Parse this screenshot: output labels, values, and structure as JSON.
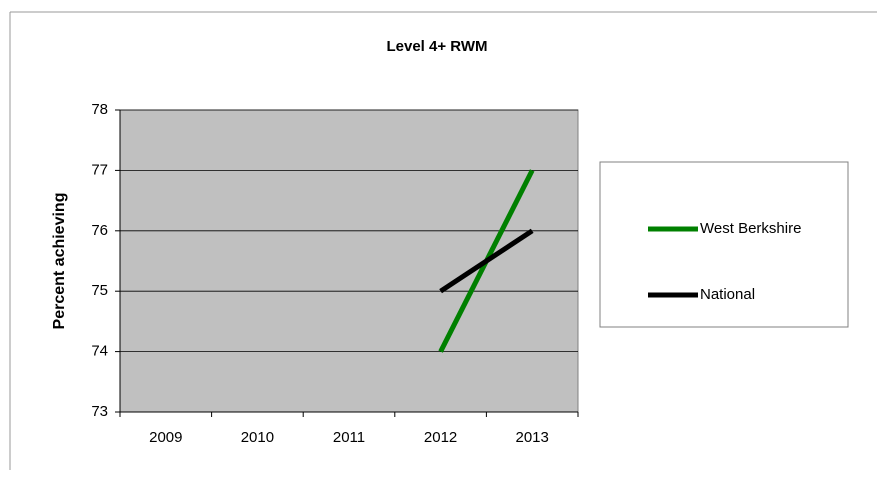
{
  "chart_data": {
    "type": "line",
    "title": "Level 4+ RWM",
    "y_label": "Percent achieving",
    "categories": [
      "2009",
      "2010",
      "2011",
      "2012",
      "2013"
    ],
    "series": [
      {
        "name": "West Berkshire",
        "color": "#008000",
        "values": [
          null,
          null,
          null,
          74,
          77
        ]
      },
      {
        "name": "National",
        "color": "#000000",
        "values": [
          null,
          null,
          null,
          75,
          76
        ]
      }
    ],
    "ylim": [
      73,
      78
    ],
    "yticks": [
      73,
      74,
      75,
      76,
      77,
      78
    ],
    "grid": true,
    "legend": "right"
  }
}
